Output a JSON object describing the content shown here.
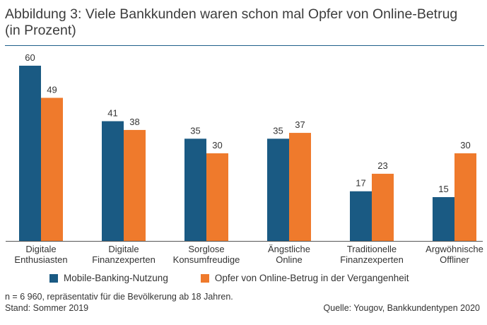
{
  "title_line1": "Abbildung 3: Viele Bankkunden waren schon mal Opfer von Online-Betrug",
  "title_line2": "(in Prozent)",
  "footnote_line1": "n = 6 960, repräsentativ für die Bevölkerung ab 18 Jahren.",
  "footnote_line2": "Stand: Sommer 2019",
  "source": "Quelle: Yougov, Bankkundentypen 2020",
  "colors": {
    "series1": "#1a5a83",
    "series2": "#ef7a2c",
    "rule": "#1f5f8b",
    "axis": "#555555"
  },
  "chart_data": {
    "type": "bar",
    "categories": [
      [
        "Digitale",
        "Enthusiasten"
      ],
      [
        "Digitale",
        "Finanzexperten"
      ],
      [
        "Sorglose",
        "Konsumfreudige"
      ],
      [
        "Ängstliche",
        "Online"
      ],
      [
        "Traditionelle",
        "Finanzexperten"
      ],
      [
        "Argwöhnische",
        "Offliner"
      ]
    ],
    "series": [
      {
        "name": "Mobile-Banking-Nutzung",
        "values": [
          60,
          41,
          35,
          35,
          17,
          15
        ]
      },
      {
        "name": "Opfer von Online-Betrug in der Vergangenheit",
        "values": [
          49,
          38,
          30,
          37,
          23,
          30
        ]
      }
    ],
    "ylim": [
      0,
      60
    ],
    "grid": false,
    "legend": "bottom"
  }
}
